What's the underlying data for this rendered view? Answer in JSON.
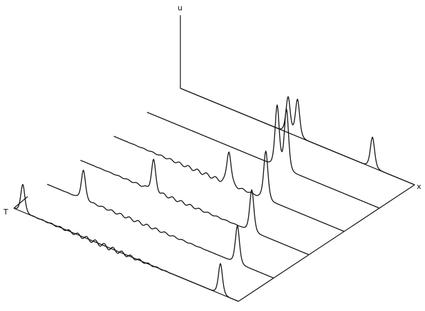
{
  "chart_data": {
    "type": "line",
    "style": "3d-waterfall",
    "axes": {
      "vertical": "u",
      "horizontal": "x",
      "depth": "T"
    },
    "grid": false,
    "legend": "none",
    "x_range": [
      0,
      1
    ],
    "t_range": [
      0,
      1
    ],
    "series": [
      {
        "t": 0.0,
        "peaks": [
          {
            "x": 0.04,
            "height": 1.0
          },
          {
            "x": 0.92,
            "height": 1.1
          }
        ],
        "ripple": 0.08
      },
      {
        "t": 0.2,
        "peaks": [
          {
            "x": 0.16,
            "height": 1.05
          },
          {
            "x": 0.84,
            "height": 1.35
          }
        ],
        "ripple": 0.05
      },
      {
        "t": 0.4,
        "peaks": [
          {
            "x": 0.32,
            "height": 1.1
          },
          {
            "x": 0.75,
            "height": 1.5
          }
        ],
        "ripple": 0.05
      },
      {
        "t": 0.6,
        "peaks": [
          {
            "x": 0.5,
            "height": 1.2
          },
          {
            "x": 0.66,
            "height": 1.75
          }
        ],
        "ripple": 0.06
      },
      {
        "t": 0.8,
        "peaks": [
          {
            "x": 0.56,
            "height": 2.2
          },
          {
            "x": 0.6,
            "height": 2.2
          }
        ],
        "ripple": 0.0
      },
      {
        "t": 1.0,
        "peaks": [
          {
            "x": 0.46,
            "height": 1.3
          },
          {
            "x": 0.5,
            "height": 1.35
          },
          {
            "x": 0.82,
            "height": 1.1
          }
        ],
        "ripple": 0.0
      }
    ]
  }
}
